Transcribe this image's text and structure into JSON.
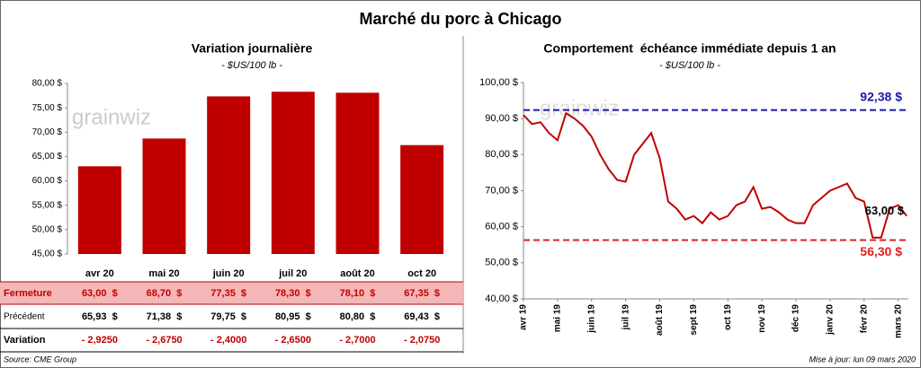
{
  "title": "Marché du porc à Chicago",
  "watermark": "grainwiz",
  "footer": {
    "source": "Source: CME Group",
    "updated": "Mise à jour: lun 09 mars 2020"
  },
  "chart_data": [
    {
      "type": "bar",
      "title": "Variation journalière",
      "subtitle": "- $US/100 lb -",
      "color": "#c00000",
      "categories": [
        "avr 20",
        "mai 20",
        "juin 20",
        "juil 20",
        "août 20",
        "oct 20"
      ],
      "values": [
        63.0,
        68.7,
        77.35,
        78.3,
        78.1,
        67.35
      ],
      "ylim": [
        45,
        80
      ],
      "yticks": [
        {
          "value": 45,
          "label": "45,00 $"
        },
        {
          "value": 50,
          "label": "50,00 $"
        },
        {
          "value": 55,
          "label": "55,00 $"
        },
        {
          "value": 60,
          "label": "60,00 $"
        },
        {
          "value": 65,
          "label": "65,00 $"
        },
        {
          "value": 70,
          "label": "70,00 $"
        },
        {
          "value": 75,
          "label": "75,00 $"
        },
        {
          "value": 80,
          "label": "80,00 $"
        }
      ]
    },
    {
      "type": "line",
      "title": "Comportement  échéance immédiate depuis 1 an",
      "subtitle": "- $US/100 lb -",
      "xlim": [
        0,
        11.3
      ],
      "xticks": [
        {
          "value": 0,
          "label": "avr 19"
        },
        {
          "value": 1,
          "label": "mai 19"
        },
        {
          "value": 2,
          "label": "juin 19"
        },
        {
          "value": 3,
          "label": "juil 19"
        },
        {
          "value": 4,
          "label": "août 19"
        },
        {
          "value": 5,
          "label": "sept 19"
        },
        {
          "value": 6,
          "label": "oct 19"
        },
        {
          "value": 7,
          "label": "nov 19"
        },
        {
          "value": 8,
          "label": "déc 19"
        },
        {
          "value": 9,
          "label": "janv 20"
        },
        {
          "value": 10,
          "label": "févr 20"
        },
        {
          "value": 11,
          "label": "mars 20"
        }
      ],
      "ylim": [
        40,
        100
      ],
      "yticks": [
        {
          "value": 40,
          "label": "40,00 $"
        },
        {
          "value": 50,
          "label": "50,00 $"
        },
        {
          "value": 60,
          "label": "60,00 $"
        },
        {
          "value": 70,
          "label": "70,00 $"
        },
        {
          "value": 80,
          "label": "80,00 $"
        },
        {
          "value": 90,
          "label": "90,00 $"
        },
        {
          "value": 100,
          "label": "100,00 $"
        }
      ],
      "x": [
        0,
        0.25,
        0.5,
        0.75,
        1,
        1.25,
        1.5,
        1.75,
        2,
        2.25,
        2.5,
        2.75,
        3,
        3.25,
        3.5,
        3.75,
        4,
        4.25,
        4.5,
        4.75,
        5,
        5.25,
        5.5,
        5.75,
        6,
        6.25,
        6.5,
        6.75,
        7,
        7.25,
        7.5,
        7.75,
        8,
        8.25,
        8.5,
        8.75,
        9,
        9.25,
        9.5,
        9.75,
        10,
        10.25,
        10.5,
        10.75,
        11,
        11.25
      ],
      "series": [
        {
          "color": "#c00000",
          "values": [
            91,
            88.5,
            89,
            86,
            84,
            91.5,
            90,
            88,
            85,
            80,
            76,
            73,
            72.5,
            80,
            83,
            86,
            79,
            67,
            65,
            62,
            63,
            61,
            64,
            62,
            63,
            66,
            67,
            71,
            65,
            65.5,
            64,
            62,
            61,
            61,
            66,
            68,
            70,
            71,
            72,
            68,
            67,
            57,
            57,
            65,
            66,
            63
          ]
        }
      ],
      "reference_lines": [
        {
          "value": 92.38,
          "label": "92,38 $",
          "color": "#1a1aa6"
        },
        {
          "value": 56.3,
          "label": "56,30 $",
          "color": "#e02020"
        }
      ],
      "annotation": {
        "value": 63,
        "label": "63,00 $"
      }
    }
  ],
  "table": {
    "rows": [
      {
        "label": "Fermeture",
        "cells": [
          "63,00  $",
          "68,70  $",
          "77,35  $",
          "78,30  $",
          "78,10  $",
          "67,35  $"
        ]
      },
      {
        "label": "Précédent",
        "cells": [
          "65,93  $",
          "71,38  $",
          "79,75  $",
          "80,95  $",
          "80,80  $",
          "69,43  $"
        ]
      },
      {
        "label": "Variation",
        "cells": [
          "- 2,9250",
          "- 2,6750",
          "- 2,4000",
          "- 2,6500",
          "- 2,7000",
          "- 2,0750"
        ]
      }
    ]
  }
}
